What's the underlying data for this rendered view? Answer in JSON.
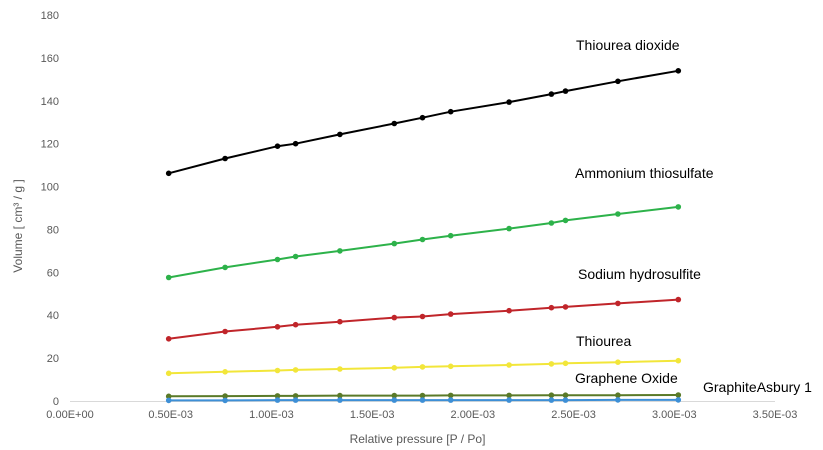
{
  "chart_data": {
    "type": "scatter",
    "title": "",
    "xlabel": "Relative pressure [P / Po]",
    "ylabel": "Volume [  cm³ / g ]",
    "xlim": [
      0,
      0.0035
    ],
    "ylim": [
      0,
      180
    ],
    "x_ticks": [
      0,
      0.0005,
      0.001,
      0.0015,
      0.002,
      0.0025,
      0.003,
      0.0035
    ],
    "x_tick_labels": [
      "0.00E+00",
      "0.50E-03",
      "1.00E-03",
      "1.50E-03",
      "2.00E-03",
      "2.50E-03",
      "3.00E-03",
      "3.50E-03"
    ],
    "y_ticks": [
      0,
      20,
      40,
      60,
      80,
      100,
      120,
      140,
      160,
      180
    ],
    "y_tick_labels": [
      "0",
      "20",
      "40",
      "60",
      "80",
      "100",
      "120",
      "140",
      "160",
      "180"
    ],
    "grid": false,
    "legend": "none",
    "series": [
      {
        "name": "Thiourea dioxide",
        "color": "#000000",
        "x": [
          0.00049,
          0.00077,
          0.00103,
          0.00112,
          0.00134,
          0.00161,
          0.00175,
          0.00189,
          0.00218,
          0.00239,
          0.00246,
          0.00272,
          0.00302
        ],
        "y": [
          106.2,
          113.1,
          118.8,
          120.0,
          124.3,
          129.4,
          132.1,
          134.9,
          139.4,
          143.1,
          144.5,
          149.1,
          154.0
        ]
      },
      {
        "name": "Ammonium thiosulfate",
        "color": "#2db24a",
        "x": [
          0.00049,
          0.00077,
          0.00103,
          0.00112,
          0.00134,
          0.00161,
          0.00175,
          0.00189,
          0.00218,
          0.00239,
          0.00246,
          0.00272,
          0.00302
        ],
        "y": [
          57.6,
          62.3,
          66.0,
          67.4,
          70.0,
          73.4,
          75.3,
          77.1,
          80.4,
          83.0,
          84.2,
          87.2,
          90.5
        ]
      },
      {
        "name": "Sodium hydrosulfite",
        "color": "#c0252a",
        "x": [
          0.00049,
          0.00077,
          0.00103,
          0.00112,
          0.00134,
          0.00161,
          0.00175,
          0.00189,
          0.00218,
          0.00239,
          0.00246,
          0.00272,
          0.00302
        ],
        "y": [
          29.0,
          32.4,
          34.6,
          35.6,
          37.0,
          38.9,
          39.4,
          40.5,
          42.1,
          43.5,
          43.9,
          45.5,
          47.3
        ]
      },
      {
        "name": "Thiourea",
        "color": "#f2e63a",
        "x": [
          0.00049,
          0.00077,
          0.00103,
          0.00112,
          0.00134,
          0.00161,
          0.00175,
          0.00189,
          0.00218,
          0.00239,
          0.00246,
          0.00272,
          0.00302
        ],
        "y": [
          12.9,
          13.6,
          14.2,
          14.5,
          14.9,
          15.5,
          15.9,
          16.2,
          16.8,
          17.3,
          17.6,
          18.1,
          18.8
        ]
      },
      {
        "name": "Graphene Oxide",
        "color": "#5a7a28",
        "x": [
          0.00049,
          0.00077,
          0.00103,
          0.00112,
          0.00134,
          0.00161,
          0.00175,
          0.00189,
          0.00218,
          0.00239,
          0.00246,
          0.00272,
          0.00302
        ],
        "y": [
          2.2,
          2.3,
          2.4,
          2.4,
          2.5,
          2.5,
          2.5,
          2.6,
          2.6,
          2.7,
          2.7,
          2.7,
          2.8
        ]
      },
      {
        "name": "GraphiteAsbury 1",
        "color": "#3d8fd6",
        "x": [
          0.00049,
          0.00077,
          0.00103,
          0.00112,
          0.00134,
          0.00161,
          0.00175,
          0.00189,
          0.00218,
          0.00239,
          0.00246,
          0.00272,
          0.00302
        ],
        "y": [
          0.3,
          0.3,
          0.4,
          0.4,
          0.4,
          0.4,
          0.4,
          0.4,
          0.4,
          0.4,
          0.4,
          0.5,
          0.5
        ]
      }
    ]
  }
}
